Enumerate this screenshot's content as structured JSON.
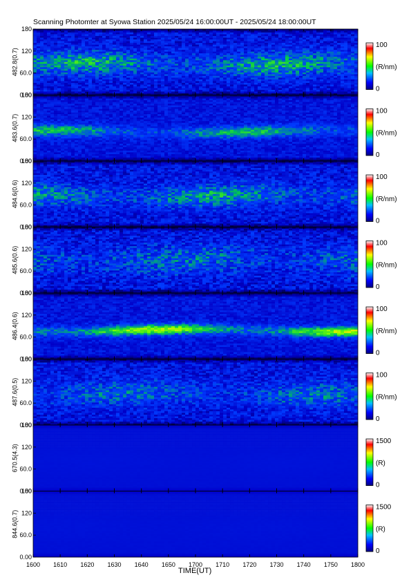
{
  "title": "Scanning Photomter at Syowa Station 2025/05/24 16:00:00UT - 2025/05/24 18:00:00UT",
  "chart_data": {
    "type": "heatmap",
    "xlabel": "TIME(UT)",
    "x_ticks": [
      "1600",
      "1610",
      "1620",
      "1630",
      "1640",
      "1650",
      "1700",
      "1710",
      "1720",
      "1730",
      "1740",
      "1750",
      "1800"
    ],
    "y_ticks": [
      "0.00",
      "60.0",
      "120",
      "180"
    ],
    "ylim": [
      0,
      180
    ],
    "colorscale": [
      "#000000",
      "#0000ff",
      "#00ff00",
      "#ffff00",
      "#ff0000",
      "#ffffff"
    ],
    "panels": [
      {
        "ylabel": "482.8(0.7)",
        "unit": "(R/nm)",
        "cmax": "100",
        "cmin": "0",
        "band_center": 85,
        "band_width": 32,
        "band_strength": 0.55,
        "noise": 0.45
      },
      {
        "ylabel": "483.6(0.7)",
        "unit": "(R/nm)",
        "cmax": "100",
        "cmin": "0",
        "band_center": 80,
        "band_width": 16,
        "band_strength": 0.6,
        "noise": 0.3
      },
      {
        "ylabel": "484.6(0.6)",
        "unit": "(R/nm)",
        "cmax": "100",
        "cmin": "0",
        "band_center": 85,
        "band_width": 30,
        "band_strength": 0.5,
        "noise": 0.45
      },
      {
        "ylabel": "485.6(0.6)",
        "unit": "(R/nm)",
        "cmax": "100",
        "cmin": "0",
        "band_center": 90,
        "band_width": 40,
        "band_strength": 0.35,
        "noise": 0.5
      },
      {
        "ylabel": "486.4(0.6)",
        "unit": "(R/nm)",
        "cmax": "100",
        "cmin": "0",
        "band_center": 78,
        "band_width": 14,
        "band_strength": 0.95,
        "noise": 0.3
      },
      {
        "ylabel": "487.6(0.5)",
        "unit": "(R/nm)",
        "cmax": "100",
        "cmin": "0",
        "band_center": 85,
        "band_width": 35,
        "band_strength": 0.35,
        "noise": 0.45
      },
      {
        "ylabel": "670.5(4.3)",
        "unit": "(R)",
        "cmax": "1500",
        "cmin": "0",
        "band_center": 80,
        "band_width": 40,
        "band_strength": 0.1,
        "noise": 0.05
      },
      {
        "ylabel": "844.6(0.7)",
        "unit": "(R)",
        "cmax": "1500",
        "cmin": "0",
        "band_center": 80,
        "band_width": 40,
        "band_strength": 0.08,
        "noise": 0.06
      }
    ]
  }
}
